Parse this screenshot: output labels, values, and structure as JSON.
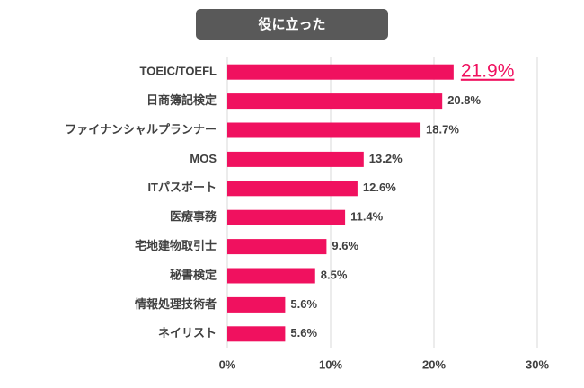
{
  "chart_data": {
    "type": "bar",
    "orientation": "horizontal",
    "title": "役に立った",
    "categories": [
      "TOEIC/TOEFL",
      "日商簿記検定",
      "ファイナンシャルプランナー",
      "MOS",
      "ITパスポート",
      "医療事務",
      "宅地建物取引士",
      "秘書検定",
      "情報処理技術者",
      "ネイリスト"
    ],
    "values": [
      21.9,
      20.8,
      18.7,
      13.2,
      12.6,
      11.4,
      9.6,
      8.5,
      5.6,
      5.6
    ],
    "value_labels": [
      "21.9%",
      "20.8%",
      "18.7%",
      "13.2%",
      "12.6%",
      "11.4%",
      "9.6%",
      "8.5%",
      "5.6%",
      "5.6%"
    ],
    "color": "#f0115f",
    "xlim": [
      0,
      30
    ],
    "xticks": [
      {
        "value": 0,
        "label": "0%"
      },
      {
        "value": 10,
        "label": "10%"
      },
      {
        "value": 20,
        "label": "20%"
      },
      {
        "value": 30,
        "label": "30%"
      }
    ],
    "grid": true
  }
}
